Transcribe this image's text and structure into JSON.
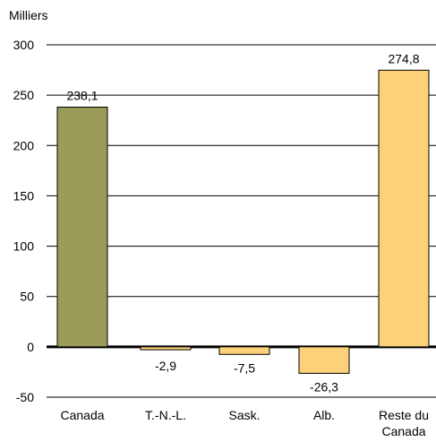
{
  "chart_data": {
    "type": "bar",
    "ylabel": "Milliers",
    "ylim": [
      -50,
      300
    ],
    "yticks": [
      300,
      250,
      200,
      150,
      100,
      50,
      0,
      -50
    ],
    "grid": true,
    "categories": [
      "Canada",
      "T.-N.-L.",
      "Sask.",
      "Alb.",
      "Reste du Canada"
    ],
    "category_lines": [
      [
        "Canada"
      ],
      [
        "T.-N.-L."
      ],
      [
        "Sask."
      ],
      [
        "Alb."
      ],
      [
        "Reste du",
        "Canada"
      ]
    ],
    "values": [
      238.1,
      -2.9,
      -7.5,
      -26.3,
      274.8
    ],
    "data_labels": [
      "238,1",
      "-2,9",
      "-7,5",
      "-26,3",
      "274,8"
    ],
    "colors": [
      "#9c9c5a",
      "#fdd17a",
      "#fdd17a",
      "#fdd17a",
      "#fdd17a"
    ],
    "bar_border": "#000000",
    "grid_color": "#000000"
  }
}
